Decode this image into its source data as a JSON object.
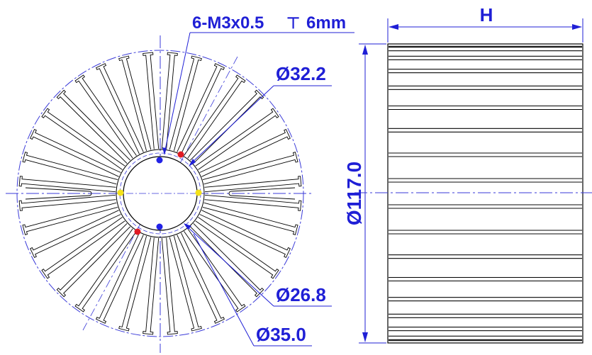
{
  "annotations": {
    "thread_spec": "6-M3x0.5",
    "depth_symbol": "⊤",
    "thread_depth": "6mm",
    "dia_32": "Ø32.2",
    "dia_26": "Ø26.8",
    "dia_35": "Ø35.0",
    "outer_dia": "Ø117.0",
    "height_label": "H"
  },
  "colors": {
    "line": "#000000",
    "dimension": "#1f1fd6",
    "center_line": "#3a3ad8",
    "marker_blue": "#2222e6",
    "marker_red": "#e01b24",
    "marker_yellow": "#f4e21a"
  },
  "geometry_notes": {
    "fin_count": 36,
    "hole_count": 6
  }
}
